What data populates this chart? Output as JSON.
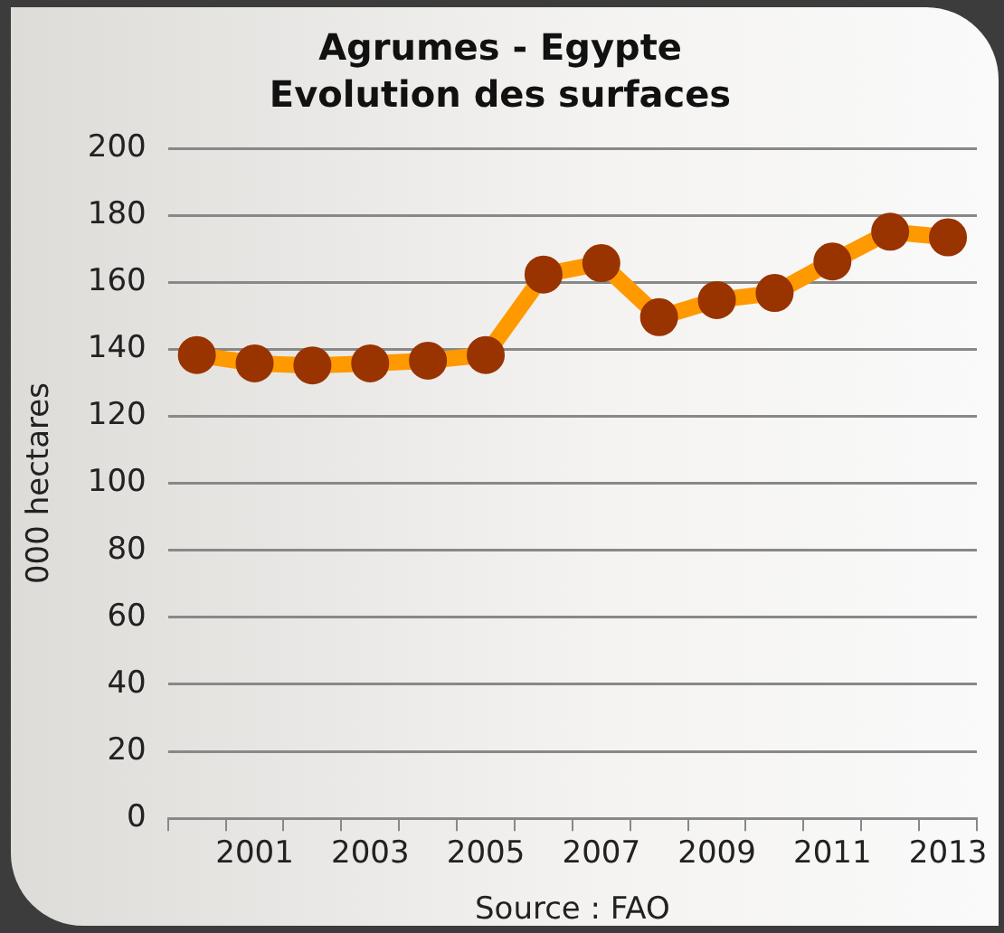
{
  "chart_data": {
    "type": "line",
    "title": "Agrumes - Egypte",
    "subtitle": "Evolution des surfaces",
    "ylabel": "000 hectares",
    "categories": [
      null,
      "2001",
      null,
      "2003",
      null,
      "2005",
      null,
      "2007",
      null,
      "2009",
      null,
      "2011",
      null,
      "2013"
    ],
    "series": [
      {
        "color": "#ff9900",
        "colors": [
          "#993300",
          "#993300",
          "#993300",
          "#993300",
          "#993300",
          "#993300",
          "#993300",
          "#993300",
          "#993300",
          "#993300",
          "#993300",
          "#993300",
          "#993300",
          "#993300"
        ],
        "values": [
          138.3,
          135.8,
          135.2,
          135.8,
          136.6,
          138.3,
          162.3,
          165.7,
          149.6,
          154.7,
          156.8,
          166.2,
          175.1,
          173.4
        ]
      }
    ],
    "marker": "circle",
    "line_style": "solid",
    "ylim": [
      0,
      200
    ],
    "yticks": [
      0,
      20,
      40,
      60,
      80,
      100,
      120,
      140,
      160,
      180,
      200
    ],
    "grid": "y",
    "legend": false,
    "annotations": [
      "Source : FAO"
    ]
  }
}
